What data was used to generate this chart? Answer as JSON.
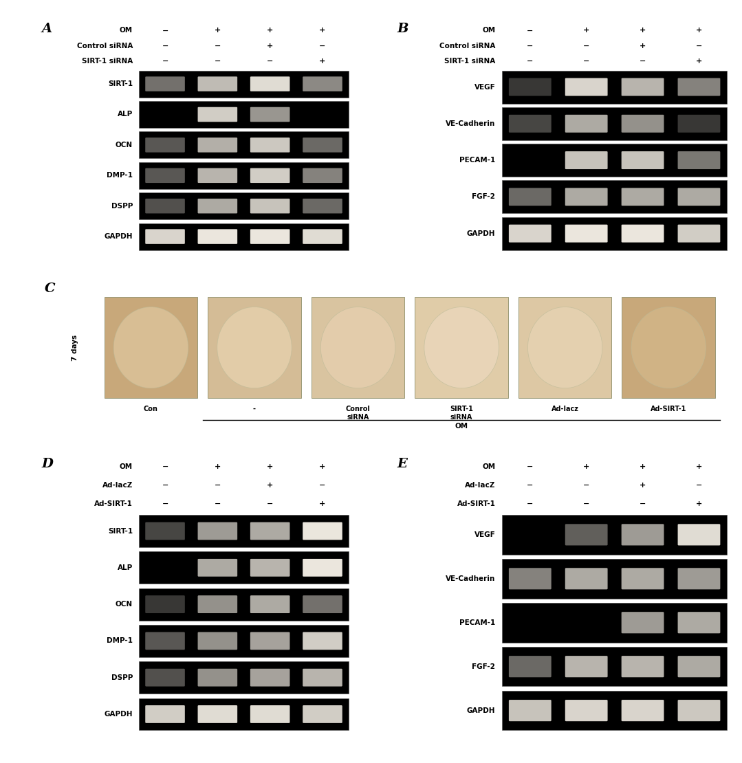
{
  "figure_width": 10.79,
  "figure_height": 11.1,
  "bg_color": "#ffffff",
  "panels": {
    "A": {
      "label": "A",
      "header_labels": [
        "OM",
        "Control siRNA",
        "SIRT-1 siRNA"
      ],
      "col_signs": [
        [
          "−",
          "+",
          "+",
          "+"
        ],
        [
          "−",
          "−",
          "+",
          "−"
        ],
        [
          "−",
          "−",
          "−",
          "+"
        ]
      ],
      "genes": [
        "SIRT-1",
        "ALP",
        "OCN",
        "DMP-1",
        "DSPP",
        "GAPDH"
      ],
      "band_data": {
        "SIRT-1": [
          0.45,
          0.75,
          0.88,
          0.55
        ],
        "ALP": [
          0.0,
          0.82,
          0.6,
          0.0
        ],
        "OCN": [
          0.35,
          0.7,
          0.8,
          0.42
        ],
        "DMP-1": [
          0.35,
          0.72,
          0.82,
          0.52
        ],
        "DSPP": [
          0.32,
          0.68,
          0.78,
          0.42
        ],
        "GAPDH": [
          0.85,
          0.92,
          0.92,
          0.88
        ]
      }
    },
    "B": {
      "label": "B",
      "header_labels": [
        "OM",
        "Control siRNA",
        "SIRT-1 siRNA"
      ],
      "col_signs": [
        [
          "−",
          "+",
          "+",
          "+"
        ],
        [
          "−",
          "−",
          "+",
          "−"
        ],
        [
          "−",
          "−",
          "−",
          "+"
        ]
      ],
      "genes": [
        "VEGF",
        "VE-Cadherin",
        "PECAM-1",
        "FGF-2",
        "GAPDH"
      ],
      "band_data": {
        "VEGF": [
          0.22,
          0.85,
          0.72,
          0.52
        ],
        "VE-Cadherin": [
          0.28,
          0.68,
          0.58,
          0.22
        ],
        "PECAM-1": [
          0.0,
          0.78,
          0.78,
          0.48
        ],
        "FGF-2": [
          0.42,
          0.68,
          0.68,
          0.68
        ],
        "GAPDH": [
          0.85,
          0.92,
          0.92,
          0.82
        ]
      }
    },
    "D": {
      "label": "D",
      "header_labels": [
        "OM",
        "Ad-lacZ",
        "Ad-SIRT-1"
      ],
      "col_signs": [
        [
          "−",
          "+",
          "+",
          "+"
        ],
        [
          "−",
          "−",
          "+",
          "−"
        ],
        [
          "−",
          "−",
          "−",
          "+"
        ]
      ],
      "genes": [
        "SIRT-1",
        "ALP",
        "OCN",
        "DMP-1",
        "DSPP",
        "GAPDH"
      ],
      "band_data": {
        "SIRT-1": [
          0.28,
          0.62,
          0.68,
          0.92
        ],
        "ALP": [
          0.0,
          0.68,
          0.72,
          0.92
        ],
        "OCN": [
          0.22,
          0.58,
          0.68,
          0.45
        ],
        "DMP-1": [
          0.35,
          0.58,
          0.65,
          0.82
        ],
        "DSPP": [
          0.32,
          0.58,
          0.65,
          0.72
        ],
        "GAPDH": [
          0.82,
          0.88,
          0.88,
          0.82
        ]
      }
    },
    "E": {
      "label": "E",
      "header_labels": [
        "OM",
        "Ad-lacZ",
        "Ad-SIRT-1"
      ],
      "col_signs": [
        [
          "−",
          "+",
          "+",
          "+"
        ],
        [
          "−",
          "−",
          "+",
          "−"
        ],
        [
          "−",
          "−",
          "−",
          "+"
        ]
      ],
      "genes": [
        "VEGF",
        "VE-Cadherin",
        "PECAM-1",
        "FGF-2",
        "GAPDH"
      ],
      "band_data": {
        "VEGF": [
          0.0,
          0.38,
          0.62,
          0.88
        ],
        "VE-Cadherin": [
          0.52,
          0.68,
          0.68,
          0.62
        ],
        "PECAM-1": [
          0.0,
          0.0,
          0.62,
          0.68
        ],
        "FGF-2": [
          0.42,
          0.72,
          0.72,
          0.68
        ],
        "GAPDH": [
          0.78,
          0.85,
          0.85,
          0.8
        ]
      }
    }
  },
  "panel_C": {
    "label": "C",
    "row_label": "7 days",
    "col_labels": [
      "Con",
      "-",
      "Conrol\nsiRNA",
      "SIRT-1\nsiRNA",
      "Ad-lacz",
      "Ad-SIRT-1"
    ],
    "om_label": "OM",
    "dish_colors": [
      "#c8a87a",
      "#d4bc96",
      "#d9c4a0",
      "#e0cca8",
      "#ddc8a4",
      "#c8a87a"
    ],
    "dish_inner_colors": [
      "#dfc8a0",
      "#e8d4b0",
      "#e8d0b0",
      "#ecd8be",
      "#e8d4b4",
      "#d4b88a"
    ]
  }
}
